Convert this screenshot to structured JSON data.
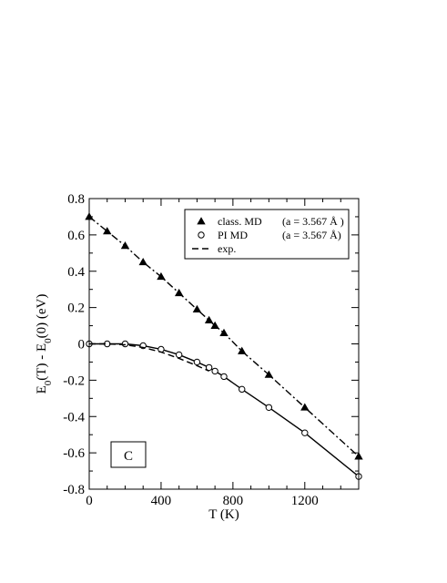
{
  "chart_data": {
    "type": "line",
    "xlabel": "T (K)",
    "ylabel": "E_0(T) - E_0(0) (eV)",
    "xlim": [
      0,
      1500
    ],
    "ylim": [
      -0.8,
      0.8
    ],
    "x_ticks": [
      0,
      400,
      800,
      1200
    ],
    "x_tick_labels": [
      "0",
      "400",
      "800",
      "1200"
    ],
    "y_ticks": [
      0.8,
      0.6,
      0.4,
      0.2,
      0,
      -0.2,
      -0.4,
      -0.6,
      -0.8
    ],
    "y_tick_labels": [
      "0.8",
      "0.6",
      "0.4",
      "0.2",
      "0",
      "-0.2",
      "-0.4",
      "-0.6",
      "-0.8"
    ],
    "grid": false,
    "panel_label": "C",
    "legend": {
      "placement": "top-right",
      "entries": [
        {
          "label": "class. MD",
          "annotation": "(a = 3.567 Å )",
          "marker": "triangle"
        },
        {
          "label": "PI MD",
          "annotation": "(a = 3.567 Å)",
          "marker": "circle"
        },
        {
          "label": "exp.",
          "annotation": "",
          "marker": "dashed-line"
        }
      ]
    },
    "series": [
      {
        "name": "class. MD",
        "marker": "triangle",
        "line_style": "dash-dot",
        "x": [
          0,
          100,
          200,
          300,
          400,
          500,
          600,
          667,
          700,
          750,
          850,
          1000,
          1200,
          1500
        ],
        "y": [
          0.7,
          0.62,
          0.54,
          0.45,
          0.37,
          0.28,
          0.19,
          0.13,
          0.1,
          0.06,
          -0.04,
          -0.17,
          -0.35,
          -0.62
        ]
      },
      {
        "name": "PI MD",
        "marker": "circle",
        "line_style": "solid",
        "x": [
          0,
          100,
          200,
          300,
          400,
          500,
          600,
          667,
          700,
          750,
          850,
          1000,
          1200,
          1500
        ],
        "y": [
          0.0,
          0.0,
          0.0,
          -0.01,
          -0.03,
          -0.06,
          -0.1,
          -0.13,
          -0.15,
          -0.18,
          -0.25,
          -0.35,
          -0.49,
          -0.73
        ]
      },
      {
        "name": "exp.",
        "marker": "none",
        "line_style": "dashed",
        "x": [
          0,
          100,
          200,
          300,
          400,
          500,
          600,
          667
        ],
        "y": [
          0.0,
          0.0,
          -0.005,
          -0.02,
          -0.045,
          -0.08,
          -0.12,
          -0.15
        ]
      }
    ]
  }
}
